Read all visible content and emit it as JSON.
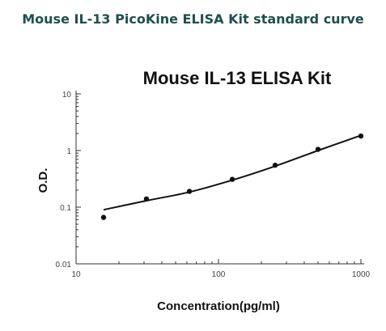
{
  "page": {
    "title": "Mouse IL-13 PicoKine ELISA Kit standard curve"
  },
  "chart_data": {
    "type": "scatter",
    "title": "Mouse IL-13 ELISA Kit",
    "xlabel": "Concentration(pg/ml)",
    "ylabel": "O.D.",
    "x_scale": "log",
    "y_scale": "log",
    "xlim": [
      10,
      1000
    ],
    "ylim": [
      0.01,
      10
    ],
    "x_ticks": [
      10,
      100,
      1000
    ],
    "x_tick_labels": [
      "10",
      "100",
      "1000"
    ],
    "y_ticks": [
      0.01,
      0.1,
      1,
      10
    ],
    "y_tick_labels": [
      "0.01",
      "0.1",
      "1",
      "10"
    ],
    "grid": false,
    "series": [
      {
        "points": [
          {
            "x": 15.6,
            "y": 0.066
          },
          {
            "x": 31.2,
            "y": 0.14
          },
          {
            "x": 62.5,
            "y": 0.19
          },
          {
            "x": 125,
            "y": 0.31
          },
          {
            "x": 250,
            "y": 0.55
          },
          {
            "x": 500,
            "y": 1.05
          },
          {
            "x": 1000,
            "y": 1.8
          }
        ],
        "fit_curve": [
          {
            "x": 15.6,
            "y": 0.09
          },
          {
            "x": 31.2,
            "y": 0.13
          },
          {
            "x": 62.5,
            "y": 0.185
          },
          {
            "x": 125,
            "y": 0.3
          },
          {
            "x": 250,
            "y": 0.53
          },
          {
            "x": 500,
            "y": 1.0
          },
          {
            "x": 1000,
            "y": 1.85
          }
        ]
      }
    ],
    "colors": {
      "marker": "#111111",
      "line": "#111111",
      "axis": "#333333"
    }
  }
}
